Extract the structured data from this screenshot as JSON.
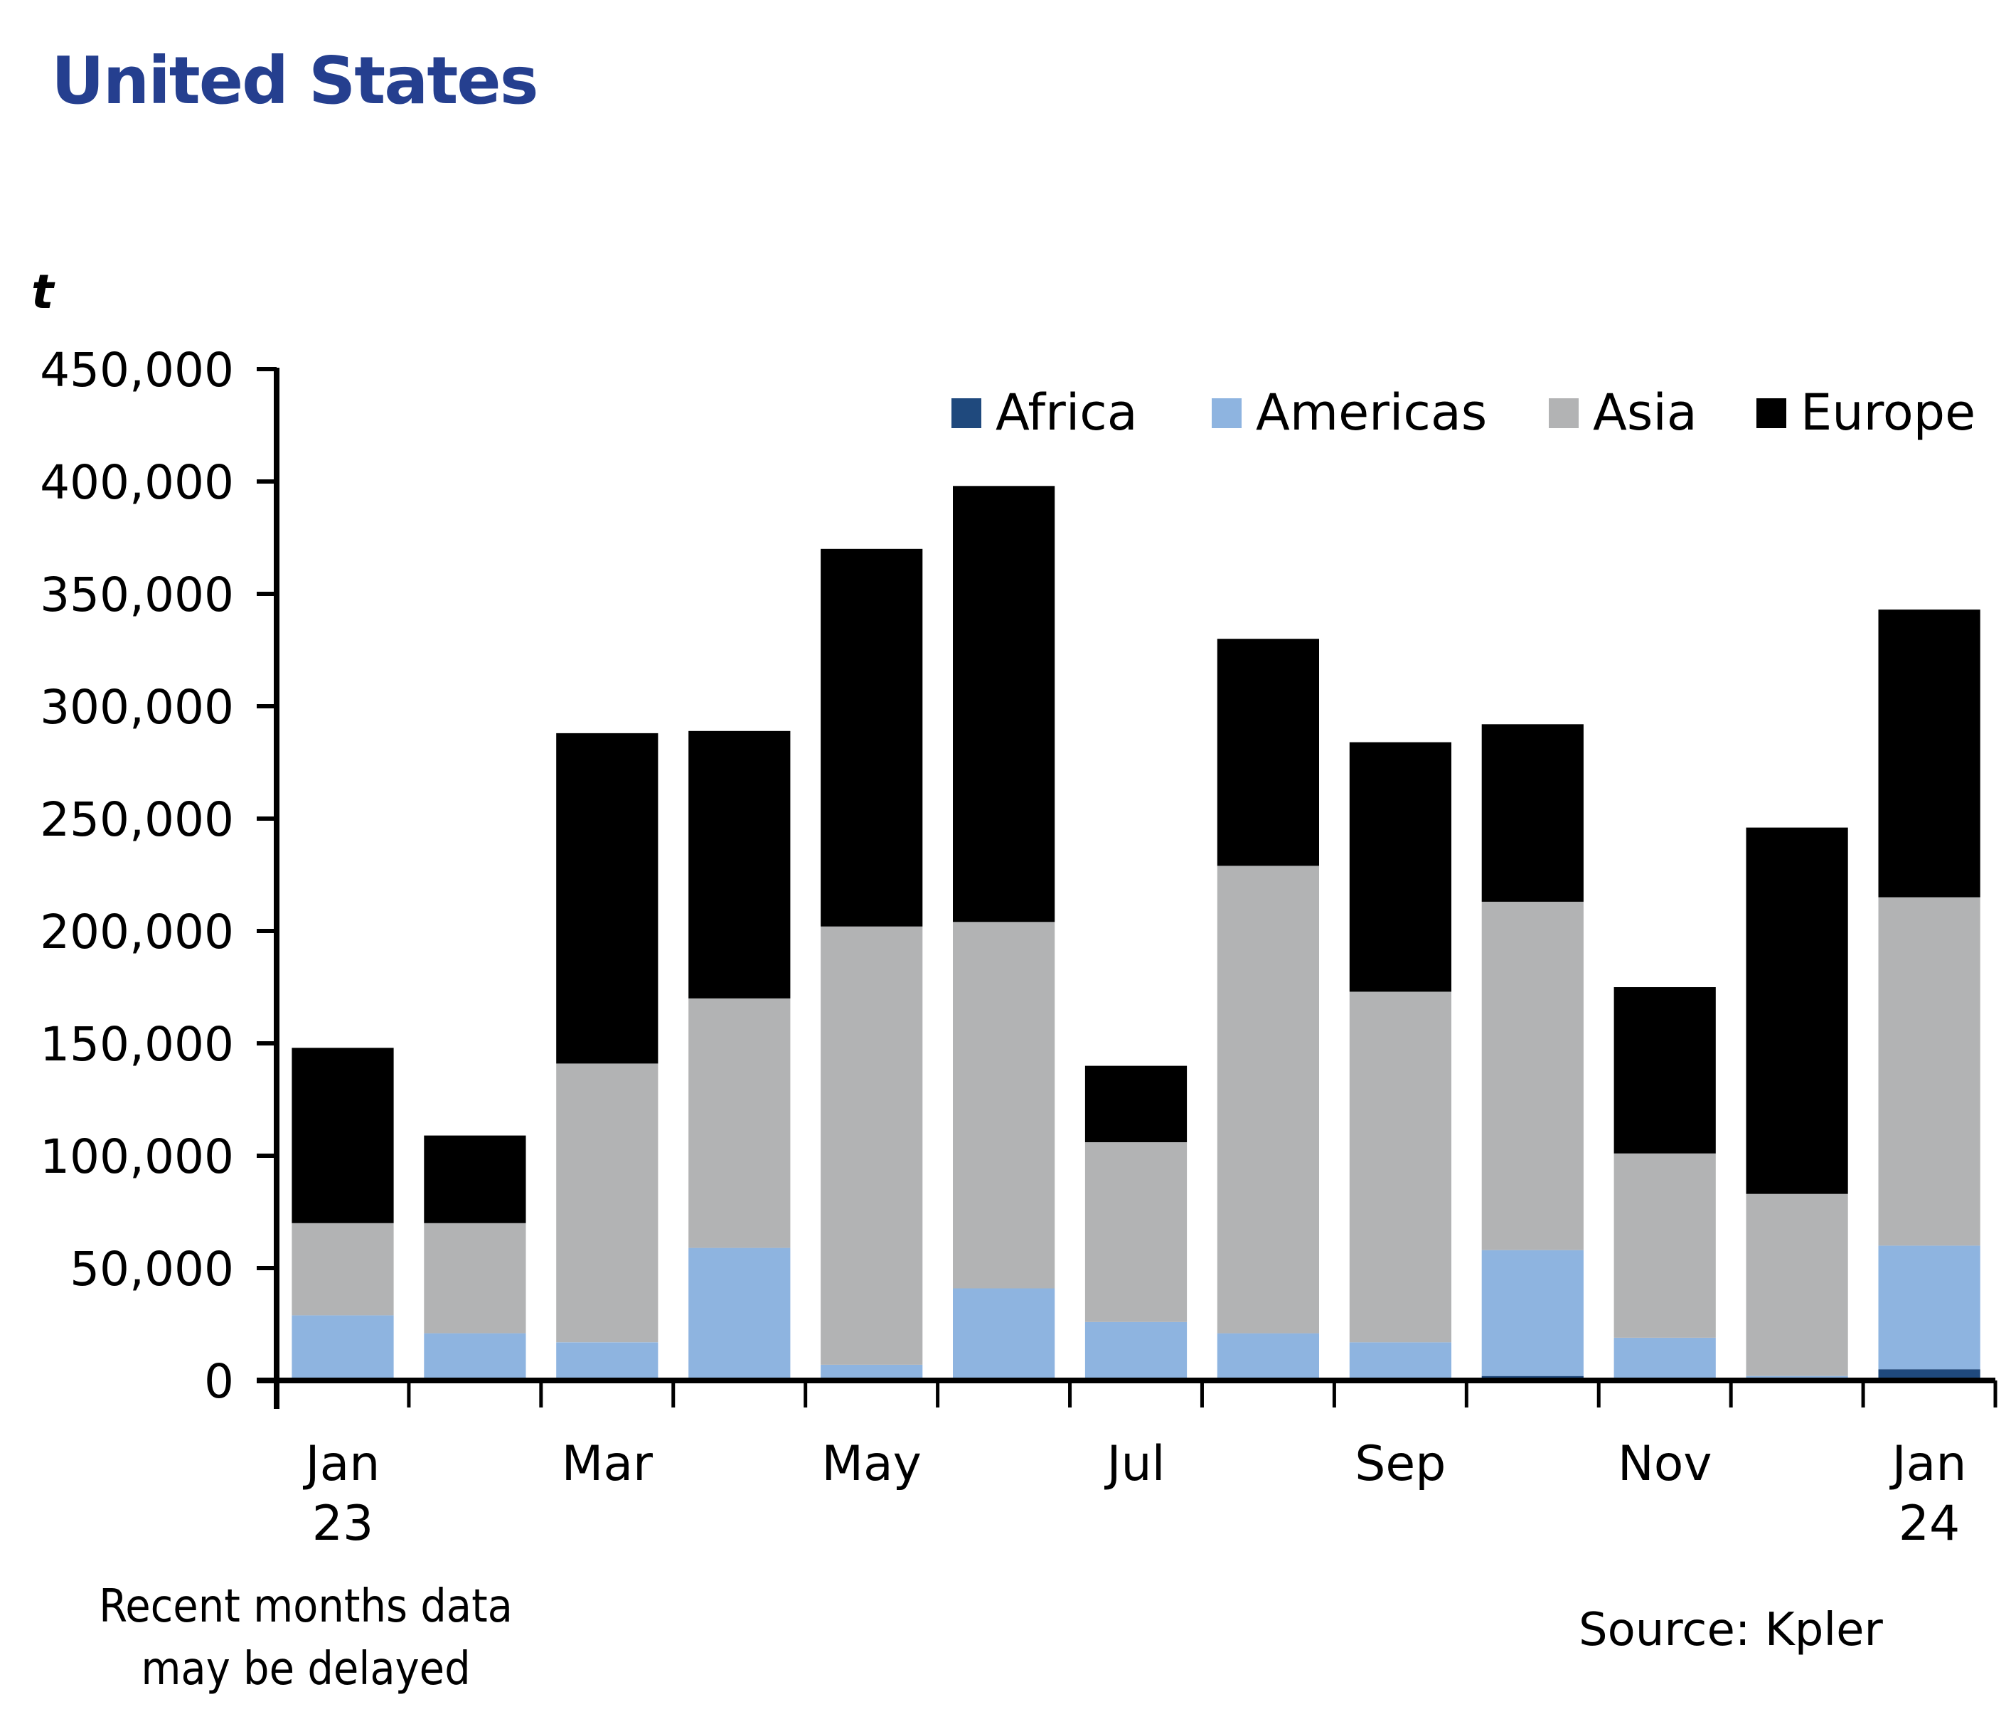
{
  "chart_data": {
    "type": "bar",
    "stacked": true,
    "title": "United States",
    "ylabel": "t",
    "xlabel": "",
    "ylim": [
      0,
      450000
    ],
    "yticks": [
      0,
      50000,
      100000,
      150000,
      200000,
      250000,
      300000,
      350000,
      400000,
      450000
    ],
    "ytick_labels": [
      "0",
      "50,000",
      "100,000",
      "150,000",
      "200,000",
      "250,000",
      "300,000",
      "350,000",
      "400,000",
      "450,000"
    ],
    "categories": [
      "Jan 23",
      "Feb 23",
      "Mar 23",
      "Apr 23",
      "May 23",
      "Jun 23",
      "Jul 23",
      "Aug 23",
      "Sep 23",
      "Oct 23",
      "Nov 23",
      "Dec 23",
      "Jan 24"
    ],
    "xtick_labels": [
      {
        "index": 0,
        "lines": [
          "Jan",
          "23"
        ]
      },
      {
        "index": 2,
        "lines": [
          "Mar"
        ]
      },
      {
        "index": 4,
        "lines": [
          "May"
        ]
      },
      {
        "index": 6,
        "lines": [
          "Jul"
        ]
      },
      {
        "index": 8,
        "lines": [
          "Sep"
        ]
      },
      {
        "index": 10,
        "lines": [
          "Nov"
        ]
      },
      {
        "index": 12,
        "lines": [
          "Jan",
          "24"
        ]
      }
    ],
    "series": [
      {
        "name": "Africa",
        "color": "#1F497D",
        "values": [
          0,
          0,
          0,
          0,
          0,
          0,
          0,
          0,
          0,
          2000,
          0,
          0,
          5000
        ]
      },
      {
        "name": "Americas",
        "color": "#8EB4E0",
        "values": [
          29000,
          21000,
          17000,
          59000,
          7000,
          41000,
          26000,
          21000,
          17000,
          56000,
          19000,
          2000,
          55000
        ]
      },
      {
        "name": "Asia",
        "color": "#B2B3B4",
        "values": [
          41000,
          49000,
          124000,
          111000,
          195000,
          163000,
          80000,
          208000,
          156000,
          155000,
          82000,
          81000,
          155000
        ]
      },
      {
        "name": "Europe",
        "color": "#000000",
        "values": [
          78000,
          39000,
          147000,
          119000,
          168000,
          194000,
          34000,
          101000,
          111000,
          79000,
          74000,
          163000,
          128000
        ]
      }
    ],
    "legend": {
      "position": "top-right",
      "orientation": "horizontal"
    },
    "grid": false,
    "footnote": "Recent months data may be delayed",
    "source": "Source: Kpler"
  },
  "header": {
    "title": "United States",
    "unit": "t"
  },
  "notes": {
    "footnote_line1": "Recent months data",
    "footnote_line2": "may be delayed",
    "source": "Source: Kpler"
  }
}
